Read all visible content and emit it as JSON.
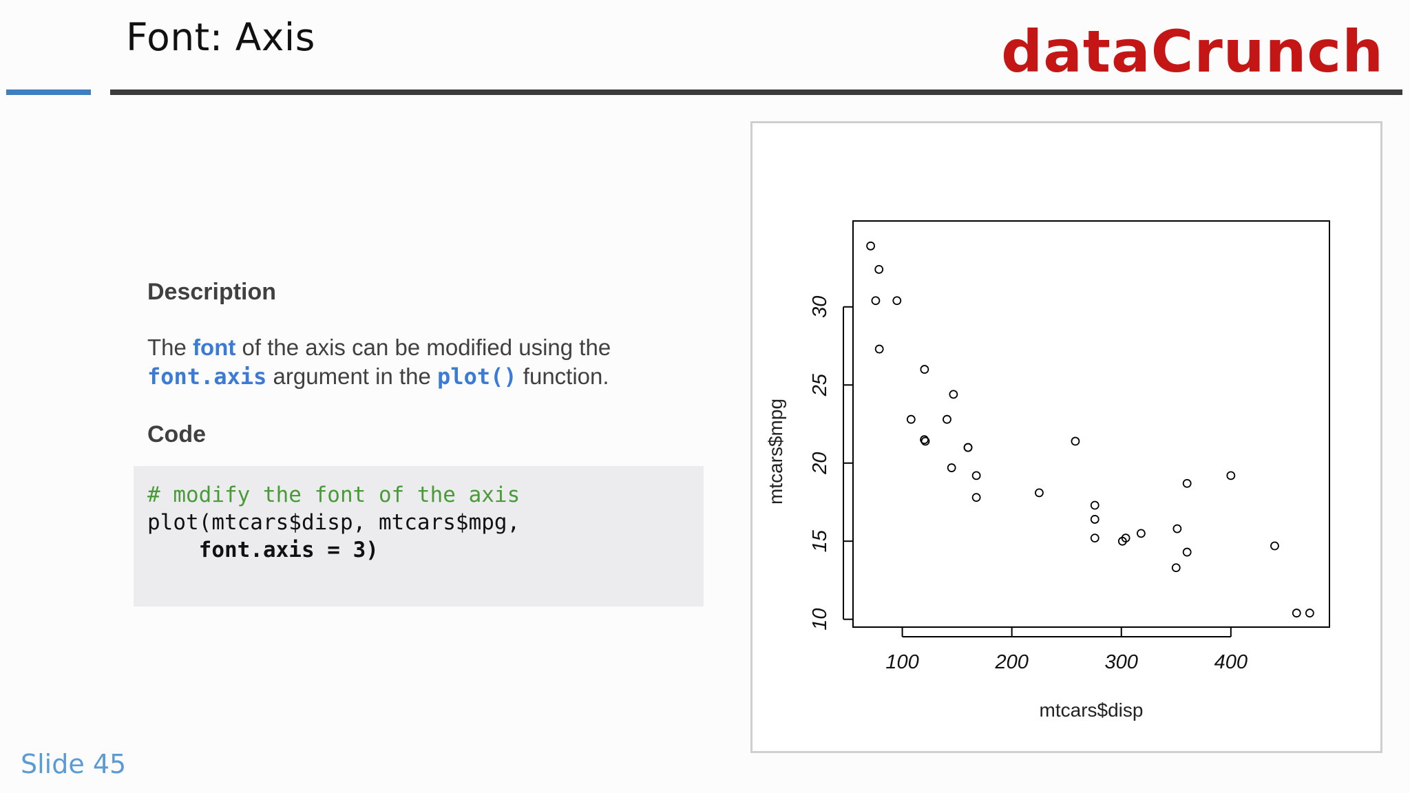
{
  "header": {
    "title": "Font: Axis",
    "brand": "dataCrunch"
  },
  "content": {
    "description_heading": "Description",
    "description": {
      "p1": "The ",
      "kw_font": "font",
      "p2": " of the axis can be modified using the",
      "kw_font_axis": "font.axis",
      "p3": " argument in the ",
      "kw_plot": "plot()",
      "p4": " function."
    },
    "code_heading": "Code",
    "code": {
      "comment": "# modify the font of the axis",
      "line2": "plot(mtcars$disp, mtcars$mpg,",
      "line3_indent": "    ",
      "line3_arg": "font.axis",
      "line3_rest": " = 3)"
    }
  },
  "footer": {
    "slide_label": "Slide 45"
  },
  "colors": {
    "brand": "#c51616",
    "keyword": "#3a7bd5",
    "comment": "#4a9a3a",
    "slide_number": "#5b9bd5",
    "rule_accent": "#3f7fbf"
  },
  "chart_data": {
    "type": "scatter",
    "title": "",
    "xlabel": "mtcars$disp",
    "ylabel": "mtcars$mpg",
    "xlim": [
      55,
      490
    ],
    "ylim": [
      9.5,
      35.5
    ],
    "x_ticks": [
      100,
      200,
      300,
      400
    ],
    "y_ticks": [
      10,
      15,
      20,
      25,
      30
    ],
    "tick_font": "italic",
    "grid": false,
    "legend": "none",
    "marker": "open-circle",
    "points": [
      {
        "x": 160,
        "y": 21.0
      },
      {
        "x": 160,
        "y": 21.0
      },
      {
        "x": 108,
        "y": 22.8
      },
      {
        "x": 258,
        "y": 21.4
      },
      {
        "x": 360,
        "y": 18.7
      },
      {
        "x": 225,
        "y": 18.1
      },
      {
        "x": 360,
        "y": 14.3
      },
      {
        "x": 146.7,
        "y": 24.4
      },
      {
        "x": 140.8,
        "y": 22.8
      },
      {
        "x": 167.6,
        "y": 19.2
      },
      {
        "x": 167.6,
        "y": 17.8
      },
      {
        "x": 275.8,
        "y": 16.4
      },
      {
        "x": 275.8,
        "y": 17.3
      },
      {
        "x": 275.8,
        "y": 15.2
      },
      {
        "x": 472,
        "y": 10.4
      },
      {
        "x": 460,
        "y": 10.4
      },
      {
        "x": 440,
        "y": 14.7
      },
      {
        "x": 78.7,
        "y": 32.4
      },
      {
        "x": 75.7,
        "y": 30.4
      },
      {
        "x": 71.1,
        "y": 33.9
      },
      {
        "x": 120.1,
        "y": 21.5
      },
      {
        "x": 318,
        "y": 15.5
      },
      {
        "x": 304,
        "y": 15.2
      },
      {
        "x": 350,
        "y": 13.3
      },
      {
        "x": 400,
        "y": 19.2
      },
      {
        "x": 79,
        "y": 27.3
      },
      {
        "x": 120.3,
        "y": 26.0
      },
      {
        "x": 95.1,
        "y": 30.4
      },
      {
        "x": 351,
        "y": 15.8
      },
      {
        "x": 145,
        "y": 19.7
      },
      {
        "x": 301,
        "y": 15.0
      },
      {
        "x": 121,
        "y": 21.4
      }
    ]
  }
}
